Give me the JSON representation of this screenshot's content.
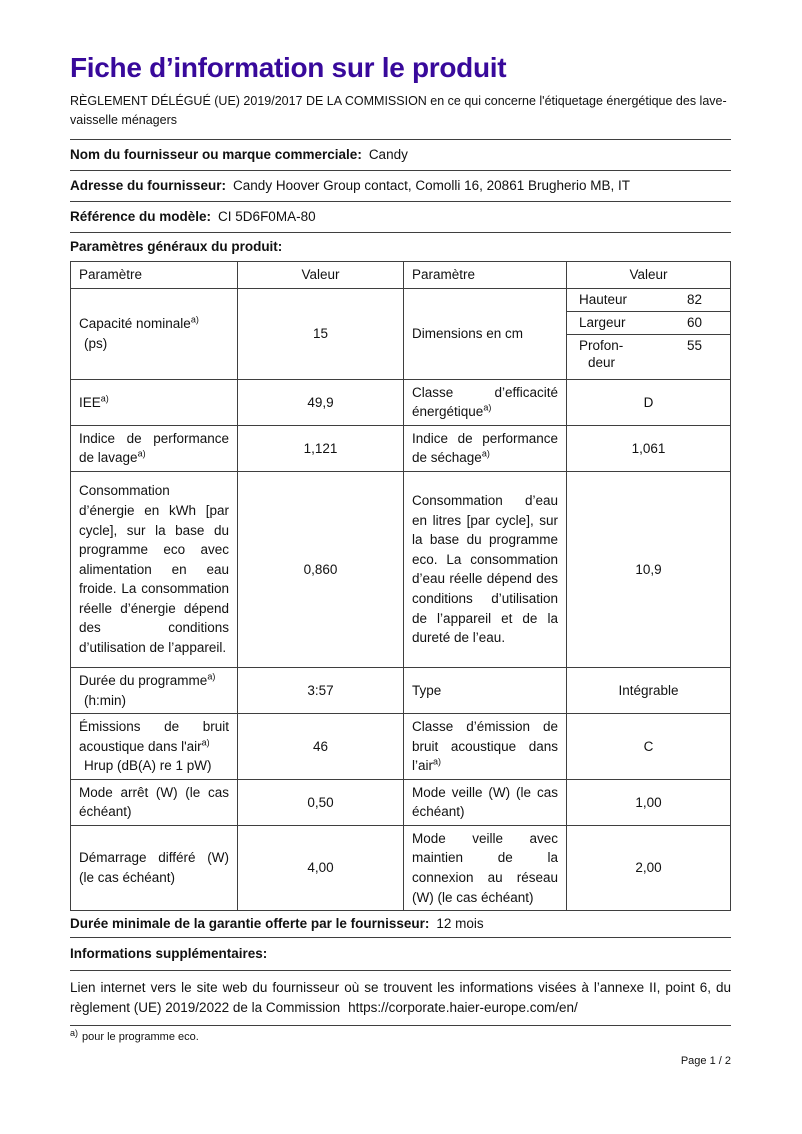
{
  "doc": {
    "title": "Fiche d’information sur le produit",
    "subtitle": "RÈGLEMENT DÉLÉGUÉ (UE) 2019/2017 DE LA COMMISSION en ce qui concerne l'étiquetage énergétique des lave-vaisselle ménagers",
    "sup": "a)",
    "footnote": "pour le programme eco.",
    "page_indicator": "Page 1 / 2",
    "title_color": "#38099b"
  },
  "supplier": {
    "name_label": "Nom du fournisseur ou marque commerciale:",
    "name_value": "Candy",
    "address_label": "Adresse du fournisseur:",
    "address_value": "Candy Hoover Group contact, Comolli 16, 20861 Brugherio MB, IT",
    "model_label": "Référence du modèle:",
    "model_value": "CI 5D6F0MA-80"
  },
  "general_params_label": "Paramètres généraux du produit:",
  "table": {
    "headers": [
      "Paramètre",
      "Valeur",
      "Paramètre",
      "Valeur"
    ],
    "rows": [
      {
        "p1": "Capacité nominale",
        "p1_line2": "(ps)",
        "v1": "15",
        "p2": "Dimensions en cm",
        "dims": [
          {
            "label": "Hauteur",
            "value": "82"
          },
          {
            "label": "Largeur",
            "value": "60"
          },
          {
            "label": "Profon-",
            "label_line2": "deur",
            "value": "55"
          }
        ]
      },
      {
        "p1": "IEE",
        "v1": "49,9",
        "p2": "Classe d’efficacité énergétique",
        "v2": "D"
      },
      {
        "p1": "Indice de performance de lavage",
        "v1": "1,121",
        "p2": "Indice de performance de séchage",
        "v2": "1,061"
      },
      {
        "p1": "Consommation d’énergie en kWh [par cycle], sur la base du programme eco avec alimentation en eau froide. La consommation réelle d’énergie dépend des conditions d’utilisation de l’appareil.",
        "v1": "0,860",
        "p2": "Consommation d’eau en litres [par cycle], sur la base du programme eco. La consommation d’eau réelle dépend des conditions d’utilisation de l’appareil et de la dureté de l’eau.",
        "v2": "10,9"
      },
      {
        "p1": "Durée du programme",
        "p1_line2": "(h:min)",
        "v1": "3:57",
        "p2": "Type",
        "v2": "Intégrable"
      },
      {
        "p1": "Émissions de bruit acoustique dans l'air",
        "p1_line2": "Hrup (dB(A) re 1 pW)",
        "v1": "46",
        "p2": "Classe d’émission de bruit acoustique dans l’air",
        "v2": "C"
      },
      {
        "p1": "Mode arrêt (W) (le cas échéant)",
        "v1": "0,50",
        "p2": "Mode veille (W) (le cas échéant)",
        "v2": "1,00"
      },
      {
        "p1": "Démarrage différé (W) (le cas échéant)",
        "v1": "4,00",
        "p2": "Mode veille avec maintien de la connexion au réseau (W) (le cas échéant)",
        "v2": "2,00"
      }
    ]
  },
  "warranty": {
    "label": "Durée minimale de la garantie offerte par le fournisseur:",
    "value": "12 mois"
  },
  "additional_info_label": "Informations supplémentaires:",
  "link": {
    "text": "Lien internet vers le site web du fournisseur où se trouvent les informations visées à l’annexe II, point 6, du règlement (UE) 2019/2022 de la Commission",
    "url": "https://corporate.haier-europe.com/en/"
  }
}
